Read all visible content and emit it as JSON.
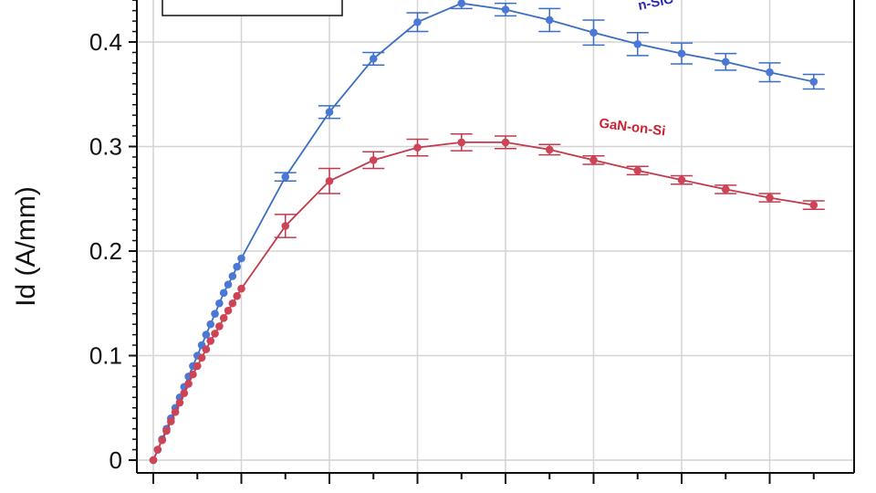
{
  "chart_data": {
    "type": "line",
    "title": "",
    "xlabel": "",
    "ylabel": "Id (A/mm)",
    "xlim": [
      -0.2,
      8
    ],
    "ylim": [
      -0.015,
      0.46
    ],
    "y_ticks": [
      0,
      0.1,
      0.2,
      0.3,
      0.4
    ],
    "y_tick_labels": [
      "0",
      "0.1",
      "0.2",
      "0.3",
      "0.4"
    ],
    "x_major_ticks": [
      0,
      1,
      2,
      3,
      4,
      5,
      6,
      7,
      8
    ],
    "grid": true,
    "legend": "top-left",
    "series": [
      {
        "name": "GaN-on-SiC",
        "label_visible": "n-SiC",
        "color": "#4a78d4",
        "line_color": "#3a6fc0",
        "label_color": "#2b2bb0",
        "x": [
          0,
          0.05,
          0.1,
          0.15,
          0.2,
          0.25,
          0.3,
          0.35,
          0.4,
          0.45,
          0.5,
          0.55,
          0.6,
          0.65,
          0.7,
          0.75,
          0.8,
          0.85,
          0.9,
          0.95,
          1.0,
          1.5,
          2.0,
          2.5,
          3.0,
          3.5,
          4.0,
          4.5,
          5.0,
          5.5,
          6.0,
          6.5,
          7.0,
          7.5
        ],
        "y": [
          0,
          0.01,
          0.02,
          0.03,
          0.04,
          0.05,
          0.06,
          0.07,
          0.08,
          0.09,
          0.1,
          0.11,
          0.12,
          0.13,
          0.14,
          0.15,
          0.16,
          0.168,
          0.176,
          0.185,
          0.193,
          0.271,
          0.333,
          0.384,
          0.419,
          0.437,
          0.431,
          0.421,
          0.409,
          0.398,
          0.389,
          0.381,
          0.371,
          0.362
        ],
        "error": [
          0,
          0,
          0,
          0,
          0,
          0,
          0,
          0,
          0,
          0,
          0,
          0,
          0,
          0,
          0,
          0,
          0,
          0,
          0,
          0,
          0,
          0.004,
          0.006,
          0.006,
          0.009,
          0.005,
          0.006,
          0.011,
          0.012,
          0.011,
          0.01,
          0.008,
          0.009,
          0.007
        ]
      },
      {
        "name": "GaN-on-Si",
        "label_visible": "GaN-on-Si",
        "color": "#cc4455",
        "line_color": "#c23a4c",
        "label_color": "#cc2233",
        "x": [
          0,
          0.05,
          0.1,
          0.15,
          0.2,
          0.25,
          0.3,
          0.35,
          0.4,
          0.45,
          0.5,
          0.55,
          0.6,
          0.65,
          0.7,
          0.75,
          0.8,
          0.85,
          0.9,
          0.95,
          1.0,
          1.5,
          2.0,
          2.5,
          3.0,
          3.5,
          4.0,
          4.5,
          5.0,
          5.5,
          6.0,
          6.5,
          7.0,
          7.5
        ],
        "y": [
          0,
          0.01,
          0.019,
          0.028,
          0.037,
          0.046,
          0.055,
          0.064,
          0.073,
          0.082,
          0.09,
          0.098,
          0.106,
          0.114,
          0.121,
          0.128,
          0.136,
          0.143,
          0.15,
          0.157,
          0.164,
          0.224,
          0.267,
          0.287,
          0.299,
          0.304,
          0.304,
          0.297,
          0.287,
          0.277,
          0.268,
          0.259,
          0.251,
          0.244
        ],
        "error": [
          0,
          0,
          0,
          0,
          0,
          0,
          0,
          0,
          0,
          0,
          0,
          0,
          0,
          0,
          0,
          0,
          0,
          0,
          0,
          0,
          0,
          0.011,
          0.012,
          0.008,
          0.008,
          0.008,
          0.006,
          0.005,
          0.004,
          0.004,
          0.004,
          0.004,
          0.004,
          0.004
        ]
      }
    ]
  }
}
